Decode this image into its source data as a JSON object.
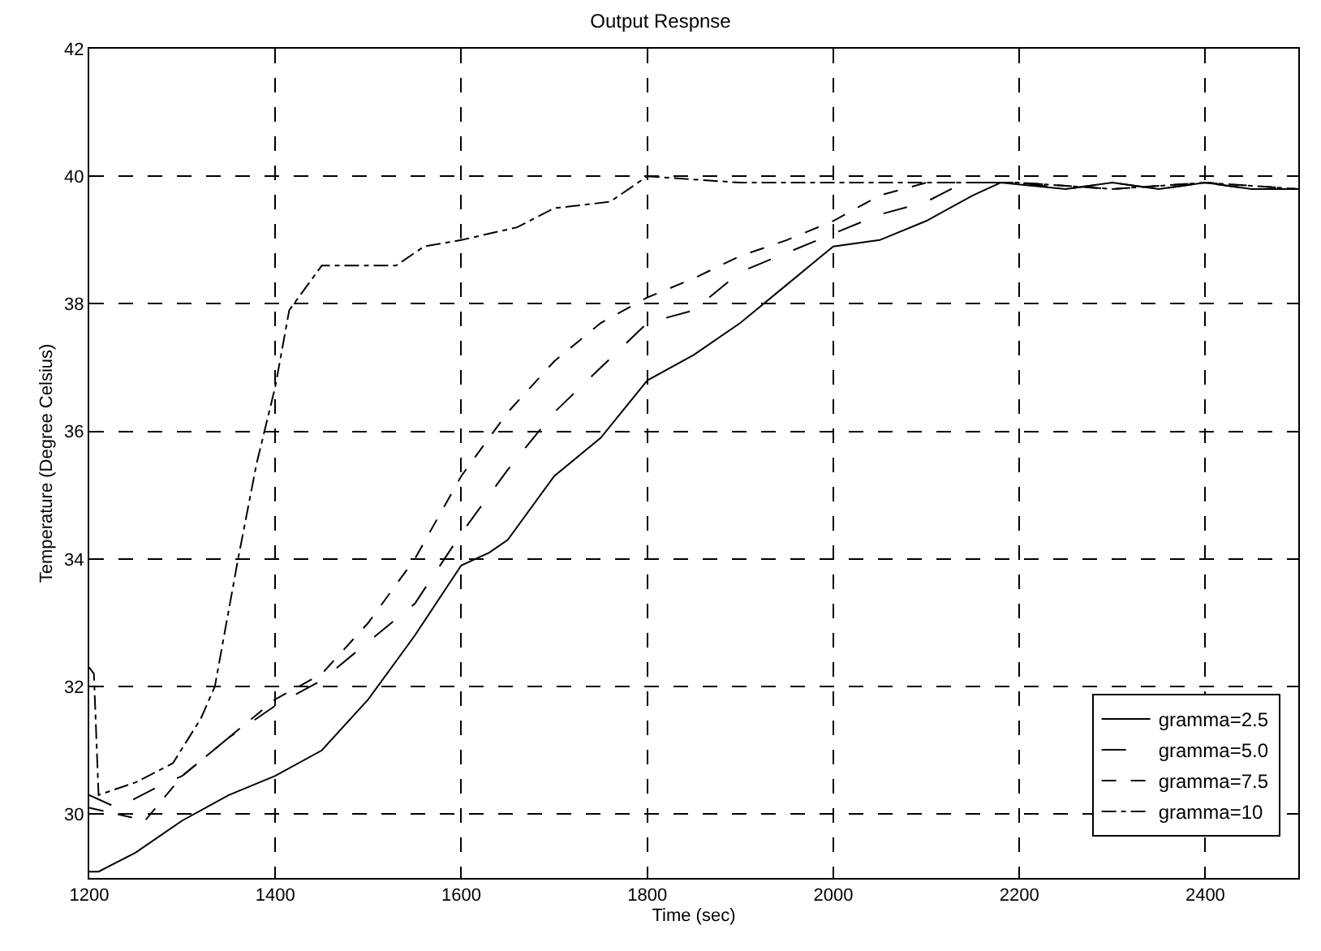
{
  "chart_data": {
    "type": "line",
    "title": "Output Respnse",
    "xlabel": "Time (sec)",
    "ylabel": "Temperature (Degree Celsius)",
    "xlim": [
      1200,
      2500
    ],
    "xticks": [
      1200,
      1400,
      1600,
      1800,
      2000,
      2200,
      2400
    ],
    "ylim": [
      29,
      42
    ],
    "yticks": [
      30,
      32,
      34,
      36,
      38,
      40,
      42
    ],
    "grid": true,
    "legend": "bottom right",
    "marker": "none",
    "series": [
      {
        "name": "gramma=2.5",
        "color": "#000000",
        "line_style": "solid",
        "x": [
          1200,
          1210,
          1250,
          1300,
          1350,
          1400,
          1450,
          1500,
          1550,
          1600,
          1630,
          1650,
          1700,
          1750,
          1800,
          1850,
          1900,
          1950,
          2000,
          2050,
          2100,
          2150,
          2180,
          2250,
          2300,
          2350,
          2400,
          2450,
          2500
        ],
        "values": [
          29.1,
          29.1,
          29.4,
          29.9,
          30.3,
          30.6,
          31.0,
          31.8,
          32.8,
          33.9,
          34.1,
          34.3,
          35.3,
          35.9,
          36.8,
          37.2,
          37.7,
          38.3,
          38.9,
          39.0,
          39.3,
          39.7,
          39.9,
          39.8,
          39.9,
          39.8,
          39.9,
          39.8,
          39.8
        ]
      },
      {
        "name": "gramma=5.0",
        "color": "#000000",
        "line_style": "longdash",
        "x": [
          1200,
          1230,
          1270,
          1300,
          1350,
          1400,
          1450,
          1500,
          1550,
          1600,
          1650,
          1700,
          1750,
          1800,
          1850,
          1900,
          1950,
          2000,
          2050,
          2100,
          2140,
          2200,
          2250,
          2300,
          2350,
          2400,
          2450,
          2500
        ],
        "values": [
          30.3,
          30.1,
          30.4,
          30.6,
          31.2,
          31.7,
          32.1,
          32.7,
          33.3,
          34.4,
          35.4,
          36.3,
          37.0,
          37.7,
          37.9,
          38.5,
          38.8,
          39.1,
          39.4,
          39.6,
          39.9,
          39.9,
          39.8,
          39.9,
          39.8,
          39.9,
          39.8,
          39.8
        ]
      },
      {
        "name": "gramma=7.5",
        "color": "#000000",
        "line_style": "dashed",
        "x": [
          1200,
          1260,
          1300,
          1350,
          1400,
          1450,
          1500,
          1550,
          1600,
          1650,
          1700,
          1750,
          1800,
          1850,
          1900,
          1950,
          2000,
          2050,
          2100,
          2200,
          2300,
          2400,
          2500
        ],
        "values": [
          30.1,
          29.9,
          30.6,
          31.2,
          31.8,
          32.2,
          33.0,
          34.0,
          35.3,
          36.3,
          37.1,
          37.7,
          38.1,
          38.4,
          38.75,
          39.0,
          39.3,
          39.7,
          39.9,
          39.9,
          39.8,
          39.9,
          39.8
        ]
      },
      {
        "name": "gramma=10",
        "color": "#000000",
        "line_style": "dashdot",
        "x": [
          1200,
          1205,
          1210,
          1250,
          1290,
          1320,
          1335,
          1360,
          1380,
          1400,
          1415,
          1450,
          1530,
          1560,
          1600,
          1660,
          1700,
          1760,
          1800,
          1900,
          2000,
          2100,
          2200,
          2300,
          2400,
          2500
        ],
        "values": [
          32.3,
          32.2,
          30.3,
          30.5,
          30.8,
          31.5,
          32.0,
          34.0,
          35.5,
          36.7,
          37.9,
          38.6,
          38.6,
          38.9,
          39.0,
          39.2,
          39.5,
          39.6,
          40.0,
          39.9,
          39.9,
          39.9,
          39.9,
          39.8,
          39.9,
          39.8
        ]
      }
    ]
  }
}
